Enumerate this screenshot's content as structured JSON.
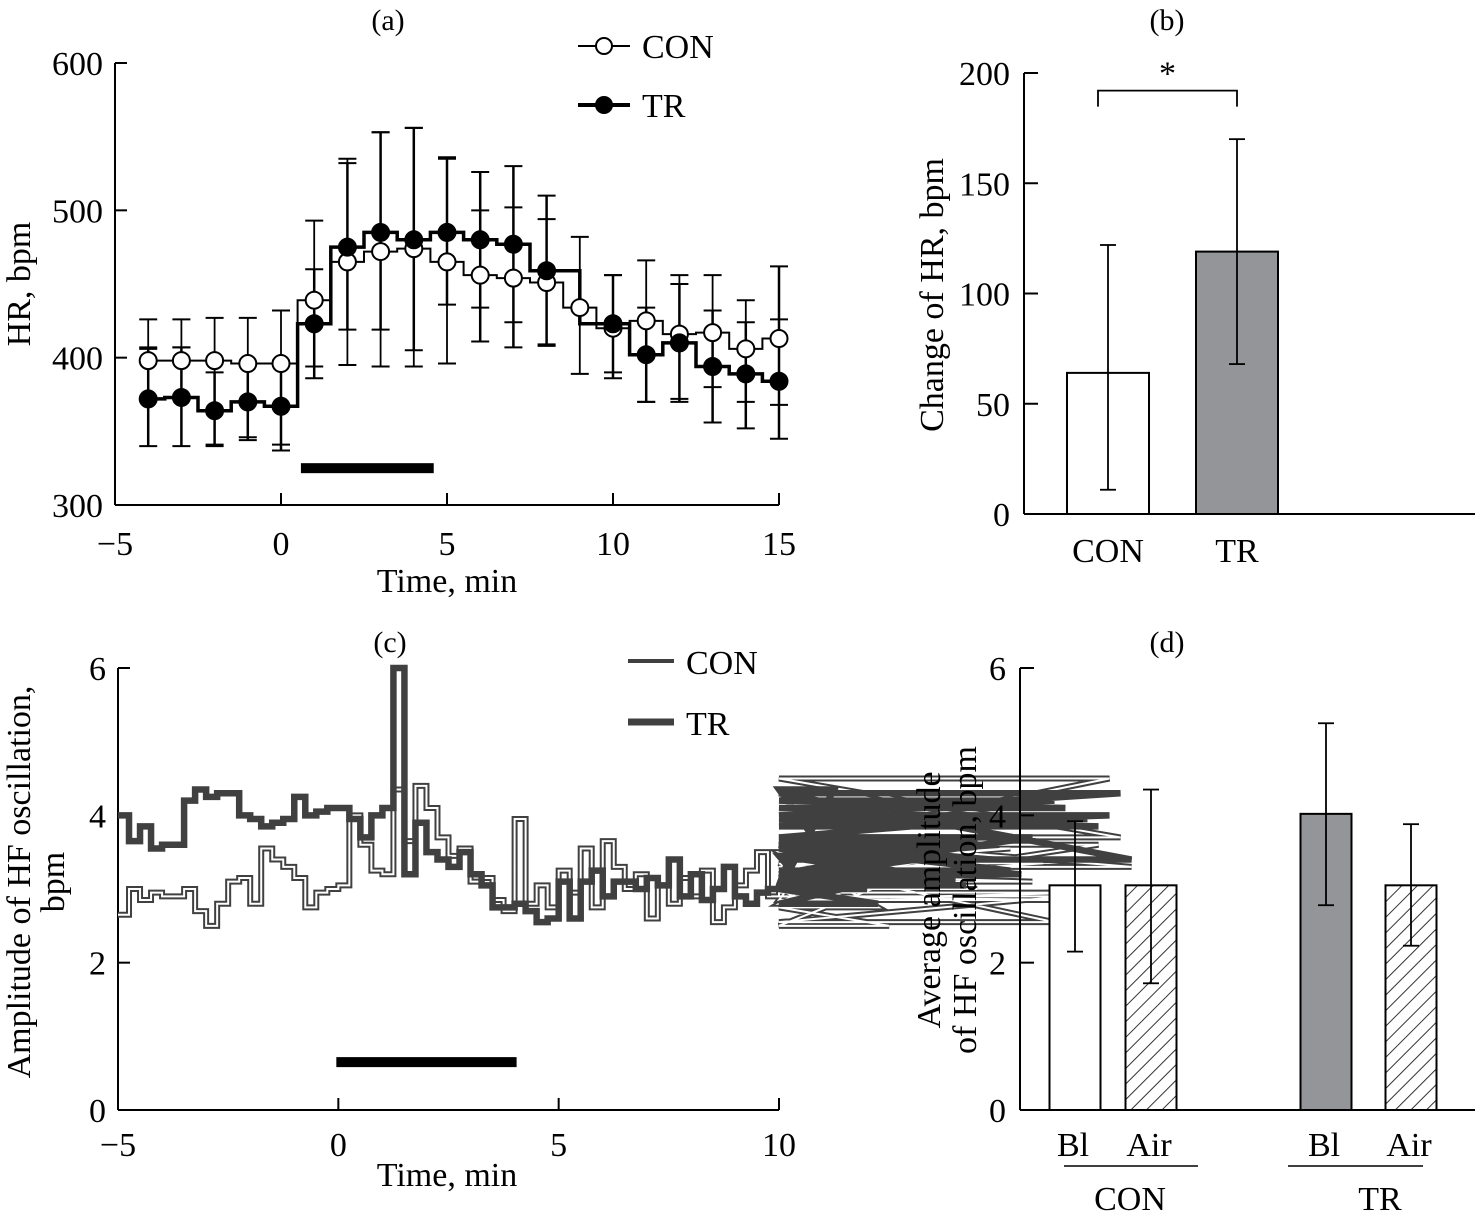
{
  "chart_data": [
    {
      "panel": "a",
      "type": "line",
      "title": "(a)",
      "xlabel": "Time, min",
      "ylabel": "HR, bpm",
      "xlim": [
        -5,
        15
      ],
      "ylim": [
        300,
        600
      ],
      "xticks": [
        -5,
        0,
        5,
        10,
        15
      ],
      "xtick_labels": [
        "−5",
        "0",
        "5",
        "10",
        "15"
      ],
      "yticks": [
        300,
        400,
        500,
        600
      ],
      "ytick_labels": [
        "300",
        "400",
        "500",
        "600"
      ],
      "legend": "top-right",
      "stimulus_bar": {
        "start": 0.6,
        "end": 4.6,
        "y": 325
      },
      "series": [
        {
          "name": "CON",
          "marker": "open-circle",
          "x": [
            -4,
            -3,
            -2,
            -1,
            0,
            1,
            2,
            3,
            4,
            5,
            6,
            7,
            8,
            9,
            10,
            11,
            12,
            13,
            14,
            15
          ],
          "y": [
            398,
            398,
            398,
            396,
            396,
            439,
            465,
            472,
            474,
            465,
            456,
            454,
            451,
            434,
            420,
            425,
            416,
            417,
            406,
            413
          ],
          "err_upper": [
            426,
            426,
            427,
            427,
            432,
            493,
            535,
            553,
            556,
            535,
            500,
            502,
            494,
            482,
            456,
            466,
            456,
            456,
            439,
            426
          ],
          "err_lower": [
            407,
            407,
            340,
            346,
            341,
            394,
            395,
            394,
            394,
            396,
            434,
            424,
            409,
            389,
            390,
            370,
            372,
            380,
            370,
            368
          ]
        },
        {
          "name": "TR",
          "marker": "filled-circle",
          "x": [
            -4,
            -3,
            -2,
            -1,
            0,
            1,
            2,
            3,
            4,
            5,
            6,
            7,
            8,
            10,
            11,
            12,
            13,
            14,
            15
          ],
          "y": [
            372,
            373,
            364,
            370,
            367,
            423,
            475,
            485,
            480,
            485,
            480,
            477,
            459,
            423,
            402,
            410,
            394,
            389,
            384
          ],
          "err_upper": [
            406,
            407,
            390,
            397,
            398,
            460,
            532,
            553,
            556,
            536,
            526,
            530,
            510,
            456,
            434,
            450,
            432,
            424,
            462
          ],
          "err_lower": [
            340,
            340,
            341,
            344,
            337,
            386,
            419,
            419,
            405,
            436,
            411,
            407,
            408,
            386,
            370,
            370,
            356,
            352,
            345
          ]
        }
      ]
    },
    {
      "panel": "b",
      "type": "bar",
      "title": "(b)",
      "xlabel": "",
      "ylabel": "Change of HR, bpm",
      "categories": [
        "CON",
        "TR"
      ],
      "values": [
        64,
        119
      ],
      "err_upper": [
        122,
        170
      ],
      "err_lower": [
        11,
        68
      ],
      "colors": [
        "#ffffff",
        "#939598"
      ],
      "ylim": [
        0,
        200
      ],
      "yticks": [
        0,
        50,
        100,
        150,
        200
      ],
      "ytick_labels": [
        "0",
        "50",
        "100",
        "150",
        "200"
      ],
      "annotation": {
        "text": "*",
        "between": [
          "CON",
          "TR"
        ],
        "y": 192
      }
    },
    {
      "panel": "c",
      "type": "line",
      "title": "(c)",
      "xlabel": "Time, min",
      "ylabel": "Amplitude of HF oscillation, bpm",
      "ylabel_lines": [
        "Amplitude of HF oscillation,",
        "bpm"
      ],
      "xlim": [
        -5,
        10
      ],
      "ylim": [
        0,
        6
      ],
      "xticks": [
        -5,
        0,
        5,
        10
      ],
      "xtick_labels": [
        "−5",
        "0",
        "5",
        "10"
      ],
      "yticks": [
        0,
        2,
        4,
        6
      ],
      "ytick_labels": [
        "0",
        "2",
        "4",
        "6"
      ],
      "legend": "top-right",
      "stimulus_bar": {
        "start": 0,
        "end": 4,
        "y": 0.65
      },
      "step": 0.25,
      "series": [
        {
          "name": "CON",
          "style": "thin-outline",
          "x_start": -5,
          "values": [
            2.65,
            3.0,
            2.85,
            2.95,
            2.9,
            2.9,
            3.0,
            2.7,
            2.5,
            2.8,
            3.1,
            3.15,
            2.8,
            3.55,
            3.4,
            3.3,
            3.15,
            2.75,
            2.95,
            3.0,
            3.05,
            4.0,
            3.6,
            3.25,
            3.2,
            4.35,
            3.65,
            4.4,
            4.1,
            3.7,
            3.45,
            3.55,
            3.1,
            3.15,
            2.85,
            2.7,
            3.95,
            2.8,
            3.05,
            2.75,
            3.25,
            2.95,
            3.55,
            2.75,
            3.65,
            3.3,
            3.0,
            3.2,
            2.6,
            3.05,
            2.8,
            3.15,
            2.9,
            3.25,
            2.55,
            2.75,
            3.05,
            3.25,
            3.5,
            2.9,
            3.0,
            3.0,
            2.85,
            3.45,
            3.45,
            3.25,
            3.35,
            2.8,
            3.5,
            2.75,
            2.5,
            3.15,
            3.1,
            3.1,
            3.35,
            3.3,
            3.6,
            3.0,
            3.0,
            3.55,
            3.3,
            3.55,
            3.2,
            3.1,
            3.35,
            2.55,
            2.9,
            2.85,
            2.95,
            3.6,
            4.5,
            3.7,
            3.3
          ],
          "color": "#404040"
        },
        {
          "name": "TR",
          "style": "thick",
          "x_start": -5,
          "values": [
            4.0,
            3.65,
            3.85,
            3.55,
            3.6,
            3.6,
            4.2,
            4.35,
            4.25,
            4.3,
            4.3,
            4.0,
            3.95,
            3.85,
            3.9,
            3.95,
            4.25,
            4.0,
            4.05,
            4.1,
            4.1,
            3.95,
            3.7,
            4.0,
            4.1,
            6.0,
            3.2,
            3.9,
            3.5,
            3.4,
            3.3,
            3.5,
            3.2,
            3.05,
            2.75,
            2.75,
            2.8,
            2.7,
            2.55,
            2.6,
            3.1,
            2.6,
            3.1,
            3.25,
            2.9,
            3.1,
            3.1,
            3.0,
            3.15,
            3.05,
            3.4,
            2.9,
            3.2,
            2.85,
            3.0,
            3.3,
            2.9,
            2.8,
            2.95,
            3.0,
            3.05,
            3.45,
            3.1,
            3.1,
            3.0,
            4.35,
            3.1,
            3.05,
            3.0,
            2.8,
            3.15,
            3.6,
            3.2,
            3.55,
            3.15,
            3.45,
            3.1,
            3.05,
            3.65,
            3.4,
            3.6,
            3.25,
            3.2,
            3.7,
            4.0,
            4.2,
            4.1,
            3.9,
            3.95,
            3.85,
            4.0,
            4.3,
            3.4
          ],
          "color": "#404040"
        }
      ]
    },
    {
      "panel": "d",
      "type": "bar",
      "title": "(d)",
      "xlabel": "",
      "ylabel": "Average amplitude of HF oscillation, bpm",
      "ylabel_lines": [
        "Average amplitude",
        "of HF oscillation, bpm"
      ],
      "groups": [
        {
          "label": "CON",
          "categories": [
            "Bl",
            "Air"
          ],
          "values": [
            3.05,
            3.05
          ],
          "err_upper": [
            3.92,
            4.35
          ],
          "err_lower": [
            2.15,
            1.72
          ],
          "fills": [
            "white",
            "hatch"
          ]
        },
        {
          "label": "TR",
          "categories": [
            "Bl",
            "Air"
          ],
          "values": [
            4.02,
            3.05
          ],
          "err_upper": [
            5.25,
            3.88
          ],
          "err_lower": [
            2.78,
            2.23
          ],
          "fills": [
            "gray",
            "hatch"
          ]
        }
      ],
      "bar_gray": "#939598",
      "ylim": [
        0,
        6
      ],
      "yticks": [
        0,
        2,
        4,
        6
      ],
      "ytick_labels": [
        "0",
        "2",
        "4",
        "6"
      ]
    }
  ]
}
